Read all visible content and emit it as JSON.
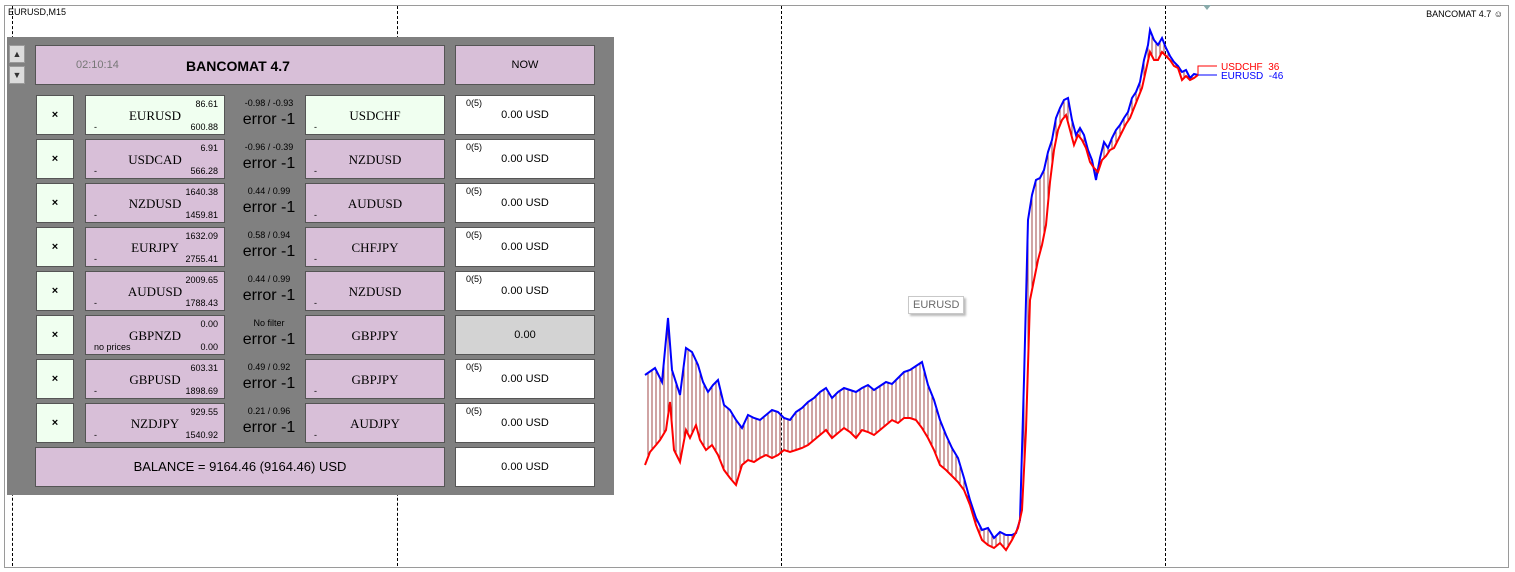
{
  "chart": {
    "symbol_label": "EURUSD,M15",
    "ea_label": "BANCOMAT 4.7",
    "tooltip": "EURUSD",
    "legend": [
      {
        "name": "USDCHF",
        "value": "36",
        "color": "#ff0000"
      },
      {
        "name": "EURUSD",
        "value": "-46",
        "color": "#0000ff"
      }
    ]
  },
  "panel": {
    "time": "02:10:14",
    "title": "BANCOMAT 4.7",
    "now_label": "NOW",
    "close_glyph": "×",
    "rows": [
      {
        "pair_a": "EURUSD",
        "a_top": "86.61",
        "a_bottom": "600.88",
        "a_note": "-",
        "range": "-0.98 / -0.93",
        "error": "error -1",
        "pair_b": "USDCHF",
        "b_note": "-",
        "count": "0(5)",
        "result": "0.00 USD",
        "green": true
      },
      {
        "pair_a": "USDCAD",
        "a_top": "6.91",
        "a_bottom": "566.28",
        "a_note": "-",
        "range": "-0.96 / -0.39",
        "error": "error -1",
        "pair_b": "NZDUSD",
        "b_note": "-",
        "count": "0(5)",
        "result": "0.00 USD",
        "green": false
      },
      {
        "pair_a": "NZDUSD",
        "a_top": "1640.38",
        "a_bottom": "1459.81",
        "a_note": "-",
        "range": "0.44 / 0.99",
        "error": "error -1",
        "pair_b": "AUDUSD",
        "b_note": "-",
        "count": "0(5)",
        "result": "0.00 USD",
        "green": false
      },
      {
        "pair_a": "EURJPY",
        "a_top": "1632.09",
        "a_bottom": "2755.41",
        "a_note": "-",
        "range": "0.58 / 0.94",
        "error": "error -1",
        "pair_b": "CHFJPY",
        "b_note": "-",
        "count": "0(5)",
        "result": "0.00 USD",
        "green": false
      },
      {
        "pair_a": "AUDUSD",
        "a_top": "2009.65",
        "a_bottom": "1788.43",
        "a_note": "-",
        "range": "0.44 / 0.99",
        "error": "error -1",
        "pair_b": "NZDUSD",
        "b_note": "-",
        "count": "0(5)",
        "result": "0.00 USD",
        "green": false
      },
      {
        "pair_a": "GBPNZD",
        "a_top": "0.00",
        "a_bottom": "0.00",
        "a_note": "no prices",
        "range": "No filter",
        "error": "error -1",
        "pair_b": "GBPJPY",
        "b_note": "",
        "count": "",
        "result": "0.00",
        "green": false,
        "gray": true
      },
      {
        "pair_a": "GBPUSD",
        "a_top": "603.31",
        "a_bottom": "1898.69",
        "a_note": "-",
        "range": "0.49 / 0.92",
        "error": "error -1",
        "pair_b": "GBPJPY",
        "b_note": "-",
        "count": "0(5)",
        "result": "0.00 USD",
        "green": false
      },
      {
        "pair_a": "NZDJPY",
        "a_top": "929.55",
        "a_bottom": "1540.92",
        "a_note": "-",
        "range": "0.21 / 0.96",
        "error": "error -1",
        "pair_b": "AUDJPY",
        "b_note": "-",
        "count": "0(5)",
        "result": "0.00 USD",
        "green": false
      }
    ],
    "balance": "BALANCE = 9164.46 (9164.46)  USD",
    "balance_result": "0.00 USD"
  }
}
